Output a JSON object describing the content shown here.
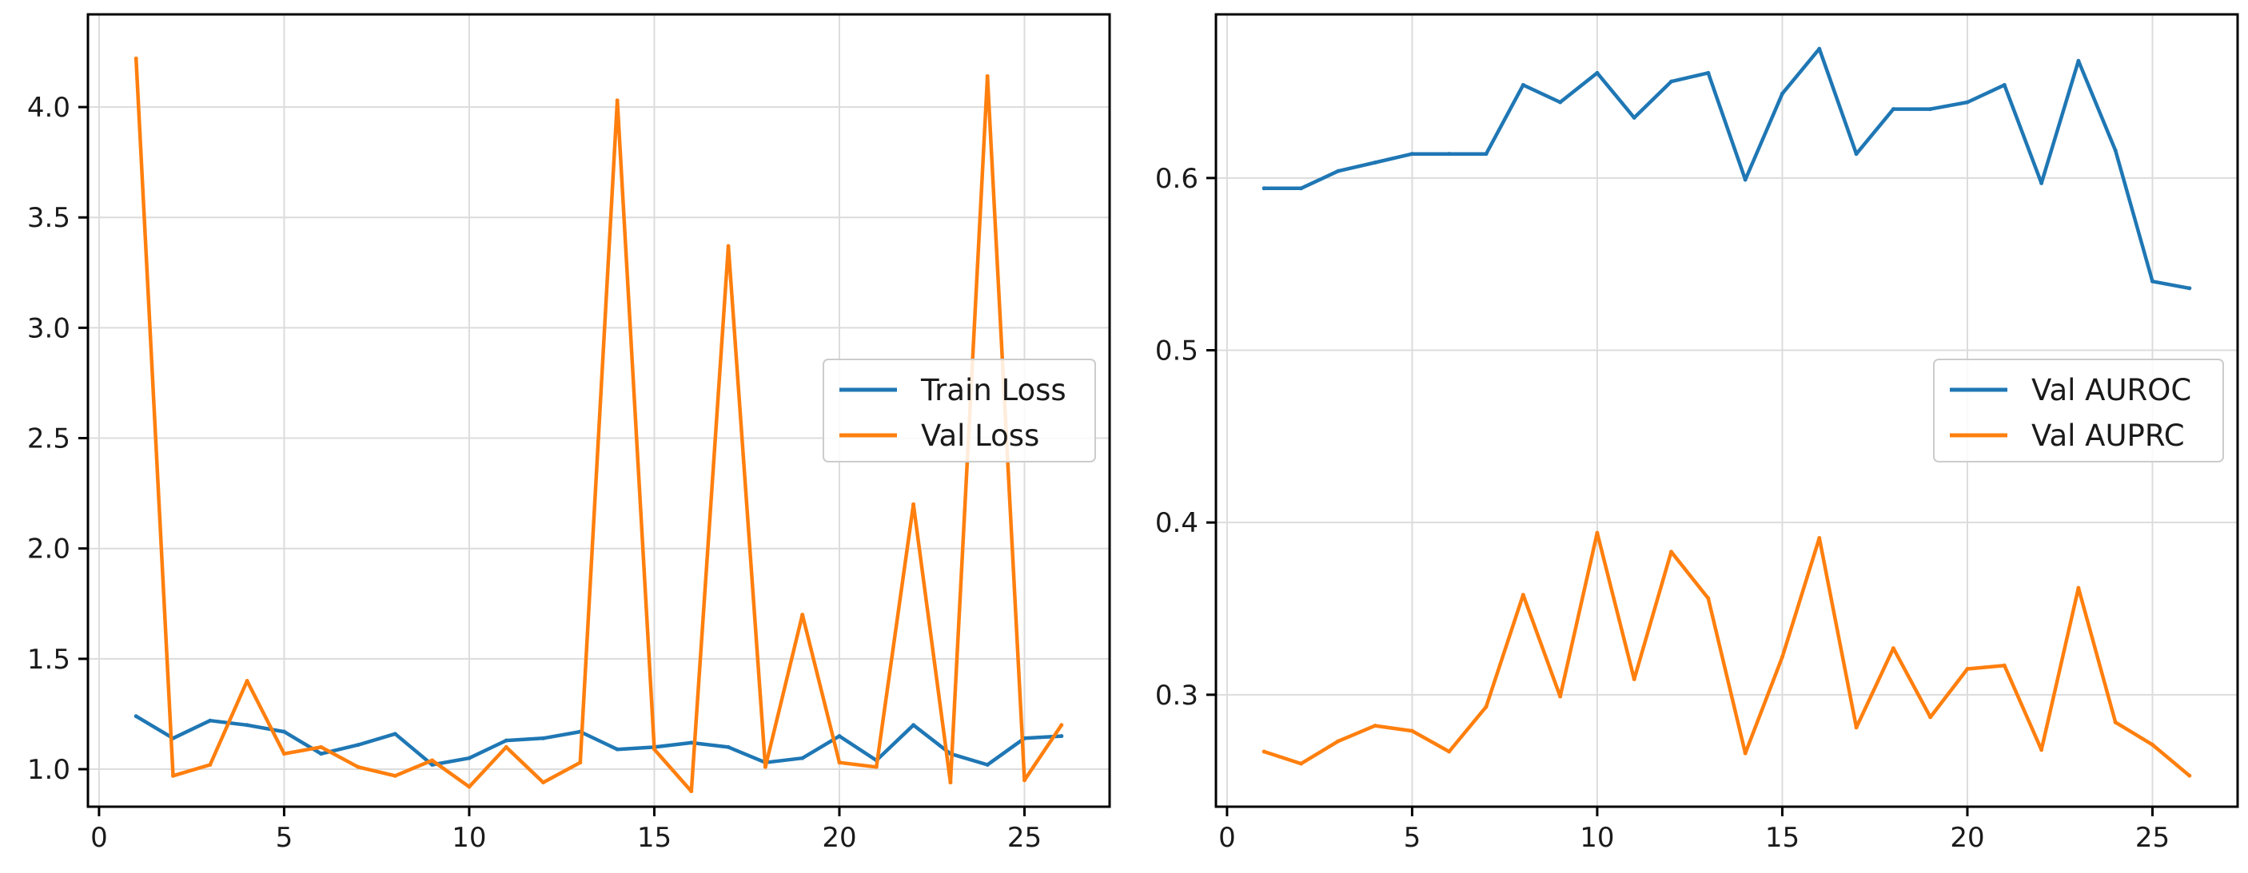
{
  "chart_data": [
    {
      "type": "line",
      "title": "",
      "xlabel": "",
      "ylabel": "",
      "xlim": [
        -0.3,
        27.3
      ],
      "ylim": [
        0.83,
        4.42
      ],
      "xticks": [
        0,
        5,
        10,
        15,
        20,
        25
      ],
      "yticks": [
        1.0,
        1.5,
        2.0,
        2.5,
        3.0,
        3.5,
        4.0
      ],
      "ytick_labels": [
        "1.0",
        "1.5",
        "2.0",
        "2.5",
        "3.0",
        "3.5",
        "4.0"
      ],
      "grid": true,
      "legend_position": "center-right",
      "x": [
        1,
        2,
        3,
        4,
        5,
        6,
        7,
        8,
        9,
        10,
        11,
        12,
        13,
        14,
        15,
        16,
        17,
        18,
        19,
        20,
        21,
        22,
        23,
        24,
        25,
        26
      ],
      "series": [
        {
          "name": "Train Loss",
          "color": "#1f77b4",
          "values": [
            1.24,
            1.14,
            1.22,
            1.2,
            1.17,
            1.07,
            1.11,
            1.16,
            1.02,
            1.05,
            1.13,
            1.14,
            1.17,
            1.09,
            1.1,
            1.12,
            1.1,
            1.03,
            1.05,
            1.15,
            1.04,
            1.2,
            1.07,
            1.02,
            1.14,
            1.15
          ]
        },
        {
          "name": "Val Loss",
          "color": "#ff7f0e",
          "values": [
            4.22,
            0.97,
            1.02,
            1.4,
            1.07,
            1.1,
            1.01,
            0.97,
            1.04,
            0.92,
            1.1,
            0.94,
            1.03,
            4.03,
            1.09,
            0.9,
            3.37,
            1.01,
            1.7,
            1.03,
            1.01,
            2.2,
            0.94,
            4.14,
            0.95,
            1.2
          ]
        }
      ]
    },
    {
      "type": "line",
      "title": "",
      "xlabel": "",
      "ylabel": "",
      "xlim": [
        -0.3,
        27.3
      ],
      "ylim": [
        0.235,
        0.695
      ],
      "xticks": [
        0,
        5,
        10,
        15,
        20,
        25
      ],
      "yticks": [
        0.3,
        0.4,
        0.5,
        0.6
      ],
      "ytick_labels": [
        "0.3",
        "0.4",
        "0.5",
        "0.6"
      ],
      "grid": true,
      "legend_position": "center-right",
      "x": [
        1,
        2,
        3,
        4,
        5,
        6,
        7,
        8,
        9,
        10,
        11,
        12,
        13,
        14,
        15,
        16,
        17,
        18,
        19,
        20,
        21,
        22,
        23,
        24,
        25,
        26
      ],
      "series": [
        {
          "name": "Val AUROC",
          "color": "#1f77b4",
          "values": [
            0.594,
            0.594,
            0.604,
            0.609,
            0.614,
            0.614,
            0.614,
            0.654,
            0.644,
            0.661,
            0.635,
            0.656,
            0.661,
            0.599,
            0.649,
            0.675,
            0.614,
            0.64,
            0.64,
            0.644,
            0.654,
            0.597,
            0.668,
            0.616,
            0.54,
            0.536
          ]
        },
        {
          "name": "Val AUPRC",
          "color": "#ff7f0e",
          "values": [
            0.267,
            0.26,
            0.273,
            0.282,
            0.279,
            0.267,
            0.293,
            0.358,
            0.299,
            0.394,
            0.309,
            0.383,
            0.356,
            0.266,
            0.322,
            0.391,
            0.281,
            0.327,
            0.287,
            0.315,
            0.317,
            0.268,
            0.362,
            0.284,
            0.271,
            0.253
          ]
        }
      ]
    }
  ]
}
